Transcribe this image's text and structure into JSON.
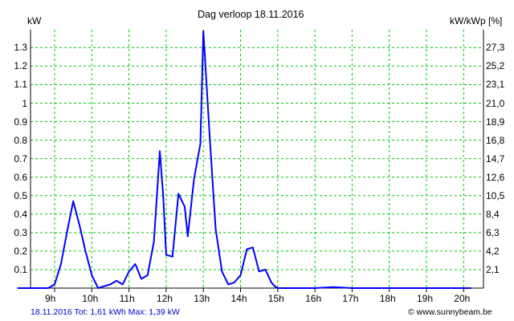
{
  "chart_data": {
    "type": "line",
    "title": "Dag  verloop 18.11.2016",
    "ylabel_left": "kW",
    "ylabel_right": "kW/kWp [%]",
    "ylim": [
      0,
      1.39
    ],
    "xlim": [
      8.0,
      20.2
    ],
    "grid": true,
    "x_ticks": [
      {
        "x": 9,
        "label": "9h"
      },
      {
        "x": 10,
        "label": "10h"
      },
      {
        "x": 11,
        "label": "11h"
      },
      {
        "x": 12,
        "label": "12h"
      },
      {
        "x": 13,
        "label": "13h"
      },
      {
        "x": 14,
        "label": "14h"
      },
      {
        "x": 15,
        "label": "15h"
      },
      {
        "x": 16,
        "label": "16h"
      },
      {
        "x": 17,
        "label": "17h"
      },
      {
        "x": 18,
        "label": "18h"
      },
      {
        "x": 19,
        "label": "19h"
      },
      {
        "x": 20,
        "label": "20h"
      }
    ],
    "y_ticks_left": [
      "0.1",
      "0.2",
      "0.3",
      "0.4",
      "0.5",
      "0.6",
      "0.7",
      "0.8",
      "0.9",
      "1",
      "1.1",
      "1.2",
      "1.3"
    ],
    "y_ticks_right": [
      "2,1",
      "4,2",
      "6,3",
      "8,4",
      "10,5",
      "12,6",
      "14,7",
      "16,8",
      "18,9",
      "21,0",
      "23,1",
      "25,2",
      "27,3"
    ],
    "series": [
      {
        "color": "#0000ff",
        "x": [
          8.0,
          8.83,
          9.0,
          9.17,
          9.33,
          9.5,
          9.67,
          9.83,
          10.0,
          10.17,
          10.33,
          10.5,
          10.67,
          10.83,
          11.0,
          11.17,
          11.33,
          11.5,
          11.67,
          11.83,
          11.92,
          12.0,
          12.17,
          12.33,
          12.5,
          12.58,
          12.75,
          12.92,
          13.0,
          13.17,
          13.33,
          13.5,
          13.67,
          13.83,
          14.0,
          14.17,
          14.33,
          14.5,
          14.67,
          14.83,
          14.92,
          15.0,
          15.17,
          15.33,
          15.5,
          15.67,
          16.0,
          16.5,
          17.0,
          20.2
        ],
        "y": [
          0,
          0,
          0.02,
          0.13,
          0.3,
          0.47,
          0.34,
          0.2,
          0.07,
          0,
          0.01,
          0.02,
          0.04,
          0.02,
          0.09,
          0.13,
          0.05,
          0.07,
          0.25,
          0.74,
          0.5,
          0.18,
          0.17,
          0.51,
          0.44,
          0.28,
          0.59,
          0.78,
          1.39,
          0.82,
          0.32,
          0.09,
          0.02,
          0.03,
          0.07,
          0.21,
          0.22,
          0.09,
          0.1,
          0.03,
          0.01,
          0,
          0,
          0,
          0,
          0,
          0,
          0.005,
          0,
          0
        ]
      }
    ]
  },
  "footer": {
    "summary": "18.11.2016 Tot: 1,61 kWh Max: 1,39 kW",
    "credit": "© www.sunnybeam.be"
  },
  "colors": {
    "line": "#0000ff",
    "grid": "#00cc00",
    "axis": "#000000",
    "footer_left": "#0000cc"
  }
}
